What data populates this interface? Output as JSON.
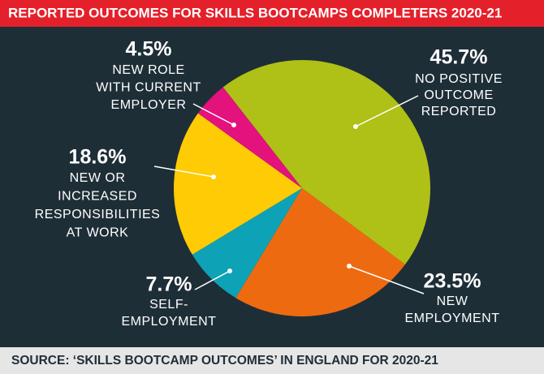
{
  "chart_data": {
    "type": "pie",
    "title": "REPORTED OUTCOMES FOR SKILLS BOOTCAMPS COMPLETERS 2020-21",
    "source": "SOURCE: ‘SKILLS BOOTCAMP OUTCOMES’ IN ENGLAND FOR 2020-21",
    "categories": [
      [
        "NO POSITIVE",
        "OUTCOME",
        "REPORTED"
      ],
      [
        "NEW",
        "EMPLOYMENT"
      ],
      [
        "SELF-",
        "EMPLOYMENT"
      ],
      [
        "NEW OR",
        "INCREASED",
        "RESPONSIBILITIES",
        "AT WORK"
      ],
      [
        "NEW ROLE",
        "WITH CURRENT",
        "EMPLOYER"
      ]
    ],
    "values": [
      45.7,
      23.5,
      7.7,
      18.6,
      4.5
    ],
    "value_labels": [
      "45.7%",
      "23.5%",
      "7.7%",
      "18.6%",
      "4.5%"
    ],
    "colors": [
      "#afc016",
      "#ee6a10",
      "#0ea2b6",
      "#fecb05",
      "#e3127c"
    ]
  }
}
